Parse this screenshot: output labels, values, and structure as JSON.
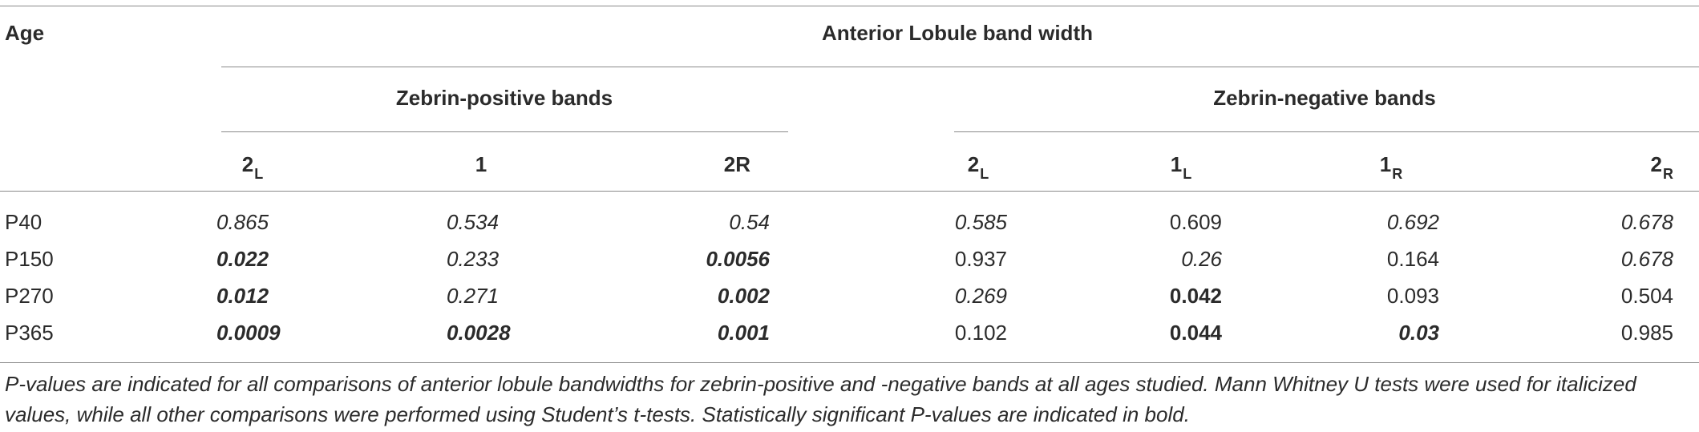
{
  "table": {
    "age_header": "Age",
    "main_header": "Anterior Lobule band width",
    "group_headers": {
      "positive": "Zebrin-positive bands",
      "negative": "Zebrin-negative bands"
    },
    "columns": [
      {
        "base": "2",
        "sub": "L"
      },
      {
        "base": "1",
        "sub": ""
      },
      {
        "base": "2R",
        "sub": ""
      },
      {
        "base": "2",
        "sub": "L"
      },
      {
        "base": "1",
        "sub": "L"
      },
      {
        "base": "1",
        "sub": "R"
      },
      {
        "base": "2",
        "sub": "R"
      }
    ],
    "rows": [
      {
        "age": "P40",
        "cells": [
          {
            "value": "0.865",
            "italic": true,
            "bold": false
          },
          {
            "value": "0.534",
            "italic": true,
            "bold": false
          },
          {
            "value": "0.54",
            "italic": true,
            "bold": false
          },
          {
            "value": "0.585",
            "italic": true,
            "bold": false
          },
          {
            "value": "0.609",
            "italic": false,
            "bold": false
          },
          {
            "value": "0.692",
            "italic": true,
            "bold": false
          },
          {
            "value": "0.678",
            "italic": true,
            "bold": false
          }
        ]
      },
      {
        "age": "P150",
        "cells": [
          {
            "value": "0.022",
            "italic": true,
            "bold": true
          },
          {
            "value": "0.233",
            "italic": true,
            "bold": false
          },
          {
            "value": "0.0056",
            "italic": true,
            "bold": true
          },
          {
            "value": "0.937",
            "italic": false,
            "bold": false
          },
          {
            "value": "0.26",
            "italic": true,
            "bold": false
          },
          {
            "value": "0.164",
            "italic": false,
            "bold": false
          },
          {
            "value": "0.678",
            "italic": true,
            "bold": false
          }
        ]
      },
      {
        "age": "P270",
        "cells": [
          {
            "value": "0.012",
            "italic": true,
            "bold": true
          },
          {
            "value": "0.271",
            "italic": true,
            "bold": false
          },
          {
            "value": "0.002",
            "italic": true,
            "bold": true
          },
          {
            "value": "0.269",
            "italic": true,
            "bold": false
          },
          {
            "value": "0.042",
            "italic": false,
            "bold": true
          },
          {
            "value": "0.093",
            "italic": false,
            "bold": false
          },
          {
            "value": "0.504",
            "italic": false,
            "bold": false
          }
        ]
      },
      {
        "age": "P365",
        "cells": [
          {
            "value": "0.0009",
            "italic": true,
            "bold": true
          },
          {
            "value": "0.0028",
            "italic": true,
            "bold": true
          },
          {
            "value": "0.001",
            "italic": true,
            "bold": true
          },
          {
            "value": "0.102",
            "italic": false,
            "bold": false
          },
          {
            "value": "0.044",
            "italic": false,
            "bold": true
          },
          {
            "value": "0.03",
            "italic": true,
            "bold": true
          },
          {
            "value": "0.985",
            "italic": false,
            "bold": false
          }
        ]
      }
    ]
  },
  "footnote": "P-values are indicated for all comparisons of anterior lobule bandwidths for zebrin-positive and -negative bands at all ages studied. Mann Whitney U tests were used for italicized values, while all other comparisons were performed using Student’s t-tests. Statistically significant P-values are indicated in bold."
}
